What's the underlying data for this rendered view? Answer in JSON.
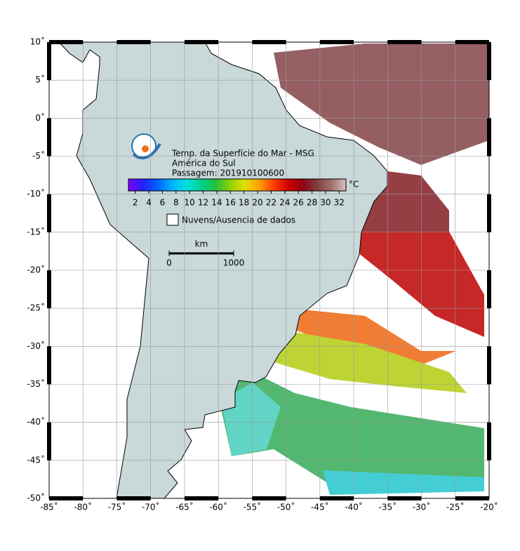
{
  "map": {
    "title": "Temp. da Superfície do Mar - MSG",
    "region": "América do Sul",
    "pass": "Passagem: 201910100600",
    "xlim": [
      -85,
      -20
    ],
    "ylim": [
      10,
      -50
    ],
    "xticks": [
      {
        "value": -85,
        "label": "-85˚"
      },
      {
        "value": -80,
        "label": "-80˚"
      },
      {
        "value": -75,
        "label": "-75˚"
      },
      {
        "value": -70,
        "label": "-70˚"
      },
      {
        "value": -65,
        "label": "-65˚"
      },
      {
        "value": -60,
        "label": "-60˚"
      },
      {
        "value": -55,
        "label": "-55˚"
      },
      {
        "value": -50,
        "label": "-50˚"
      },
      {
        "value": -45,
        "label": "-45˚"
      },
      {
        "value": -40,
        "label": "-40˚"
      },
      {
        "value": -35,
        "label": "-35˚"
      },
      {
        "value": -30,
        "label": "-30˚"
      },
      {
        "value": -25,
        "label": "-25˚"
      },
      {
        "value": -20,
        "label": "-20˚"
      }
    ],
    "yticks": [
      {
        "value": 10,
        "label": "10˚"
      },
      {
        "value": 5,
        "label": "5˚"
      },
      {
        "value": 0,
        "label": "0˚"
      },
      {
        "value": -5,
        "label": "-5˚"
      },
      {
        "value": -10,
        "label": "-10˚"
      },
      {
        "value": -15,
        "label": "-15˚"
      },
      {
        "value": -20,
        "label": "-20˚"
      },
      {
        "value": -25,
        "label": "-25˚"
      },
      {
        "value": -30,
        "label": "-30˚"
      },
      {
        "value": -35,
        "label": "-35˚"
      },
      {
        "value": -40,
        "label": "-40˚"
      },
      {
        "value": -45,
        "label": "-45˚"
      },
      {
        "value": -50,
        "label": "-50˚"
      }
    ],
    "grid": true,
    "colorbar": {
      "range": [
        1,
        33
      ],
      "ticks": [
        2,
        4,
        6,
        8,
        10,
        12,
        14,
        16,
        18,
        20,
        22,
        24,
        26,
        28,
        30,
        32
      ],
      "unit": "°C",
      "colors": [
        "#8000ff",
        "#2020ff",
        "#0060ff",
        "#00b0ff",
        "#00e0e0",
        "#00d090",
        "#20c040",
        "#90d000",
        "#e0e000",
        "#ffa000",
        "#ff4000",
        "#d00000",
        "#900010",
        "#804040",
        "#a07070",
        "#d8c0c0"
      ]
    },
    "legend": "Nuvens/Ausencia de dados",
    "scale": {
      "unit": "km",
      "ticks": [
        0,
        1000
      ]
    }
  }
}
